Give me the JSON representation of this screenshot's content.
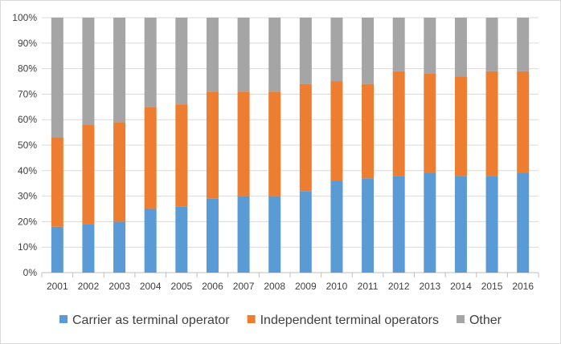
{
  "chart_data": {
    "type": "bar",
    "stacked": true,
    "categories": [
      "2001",
      "2002",
      "2003",
      "2004",
      "2005",
      "2006",
      "2007",
      "2008",
      "2009",
      "2010",
      "2011",
      "2012",
      "2013",
      "2014",
      "2015",
      "2016"
    ],
    "series": [
      {
        "name": "Carrier as terminal operator",
        "color": "#5b9bd5",
        "values": [
          18,
          19,
          20,
          25,
          26,
          29,
          30,
          30,
          32,
          36,
          37,
          38,
          39,
          38,
          38,
          39
        ]
      },
      {
        "name": "Independent terminal operators",
        "color": "#ed7d31",
        "values": [
          35,
          39,
          39,
          40,
          40,
          42,
          41,
          41,
          42,
          39,
          37,
          41,
          39,
          39,
          41,
          40
        ]
      },
      {
        "name": "Other",
        "color": "#a5a5a5",
        "values": [
          47,
          42,
          41,
          35,
          34,
          29,
          29,
          29,
          26,
          25,
          26,
          21,
          22,
          23,
          21,
          21
        ]
      }
    ],
    "y_ticks": [
      "0%",
      "10%",
      "20%",
      "30%",
      "40%",
      "50%",
      "60%",
      "70%",
      "80%",
      "90%",
      "100%"
    ],
    "ylim": [
      0,
      100
    ],
    "grid": true,
    "legend_position": "bottom",
    "title": "",
    "xlabel": "",
    "ylabel": ""
  }
}
